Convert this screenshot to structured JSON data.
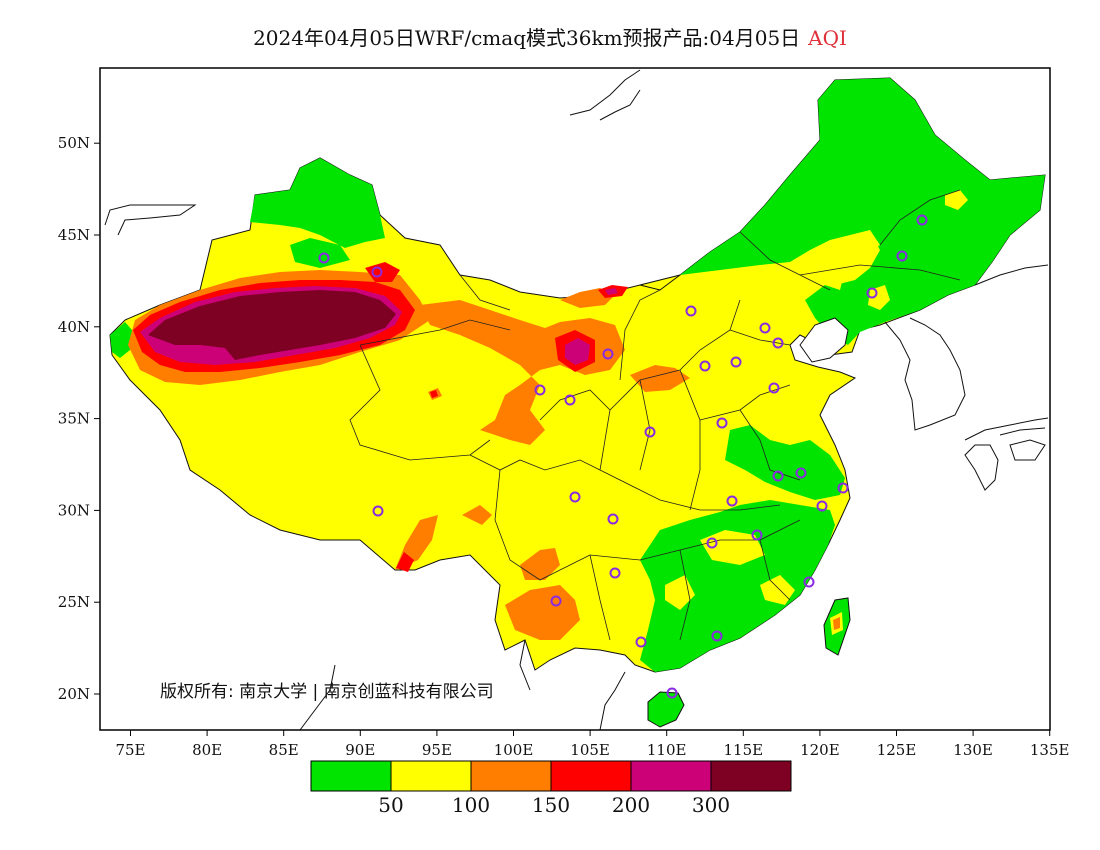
{
  "title": {
    "main": "2024年04月05日WRF/cmaq模式36km预报产品:04月05日",
    "variable": "AQI"
  },
  "axes": {
    "x_ticks": [
      "75E",
      "80E",
      "85E",
      "90E",
      "95E",
      "100E",
      "105E",
      "110E",
      "115E",
      "120E",
      "125E",
      "130E",
      "135E"
    ],
    "y_ticks": [
      "20N",
      "25N",
      "30N",
      "35N",
      "40N",
      "45N",
      "50N"
    ]
  },
  "colorbar": {
    "colors": [
      "#00e400",
      "#ffff00",
      "#ff7e00",
      "#ff0000",
      "#cc0077",
      "#7e0023"
    ],
    "labels": [
      "50",
      "100",
      "150",
      "200",
      "300"
    ]
  },
  "copyright": "版权所有: 南京大学 | 南京创蓝科技有限公司",
  "map_colors": {
    "good": "#00e400",
    "moderate": "#ffff00",
    "usg": "#ff7e00",
    "unhealthy": "#ff0000",
    "very_unhealthy": "#cc0077",
    "hazardous": "#7e0023",
    "station_marker": "#8a2be2"
  }
}
